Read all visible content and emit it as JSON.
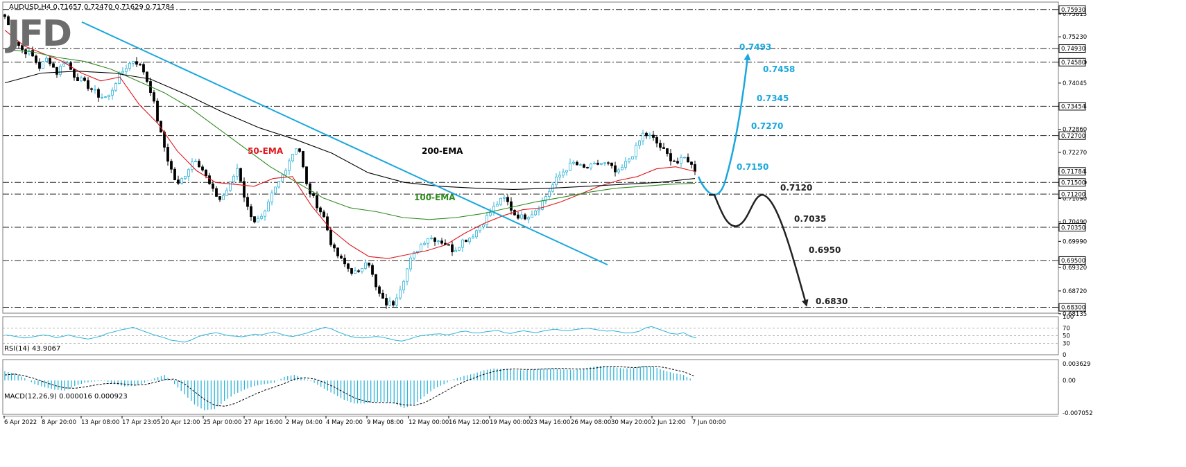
{
  "header": {
    "symbol_line": "AUDUSD,H4  0.71657 0.72470 0.71629 0.71784",
    "logo_text": "JFD"
  },
  "colors": {
    "bull": "#2bb3d9",
    "bear": "#000000",
    "ema50": "#e0161c",
    "ema100": "#2e8b1e",
    "ema200": "#000000",
    "trendline": "#1aa7dd",
    "scenario_up": "#1aa7dd",
    "scenario_down": "#222222",
    "grid": "#9a9a9a"
  },
  "chart_data": [
    {
      "type": "candlestick",
      "panel": "price",
      "ylim": [
        0.68135,
        0.7593
      ],
      "y_ticks": [
        "0.75815",
        "0.75230",
        "0.74580",
        "0.74045",
        "0.73454",
        "0.72860",
        "0.72270",
        "0.71784",
        "0.71500",
        "0.71090",
        "0.70490",
        "0.69990",
        "0.69320",
        "0.68720",
        "0.68135"
      ],
      "x_tick_labels": [
        "6 Apr 2022",
        "8 Apr 20:00",
        "13 Apr 08:00",
        "17 Apr 23:05",
        "20 Apr 12:00",
        "25 Apr 00:00",
        "27 Apr 16:00",
        "2 May 04:00",
        "4 May 20:00",
        "9 May 08:00",
        "12 May 00:00",
        "16 May 12:00",
        "19 May 00:00",
        "23 May 16:00",
        "26 May 08:00",
        "30 May 20:00",
        "2 Jun 12:00",
        "7 Jun 00:00"
      ],
      "key_levels": [
        {
          "value": 0.7593,
          "label": "0.75930"
        },
        {
          "value": 0.7493,
          "label": "0.74930"
        },
        {
          "value": 0.7458,
          "label": "0.74580"
        },
        {
          "value": 0.7345,
          "label": "0.73454"
        },
        {
          "value": 0.727,
          "label": "0.72700"
        },
        {
          "value": 0.715,
          "label": "0.71500"
        },
        {
          "value": 0.712,
          "label": "0.71200"
        },
        {
          "value": 0.7035,
          "label": "0.70350"
        },
        {
          "value": 0.695,
          "label": "0.69500"
        },
        {
          "value": 0.683,
          "label": "0.68300"
        }
      ],
      "current_price": {
        "value": 0.71784,
        "label": "0.71784"
      },
      "close_path": [
        0.7575,
        0.752,
        0.749,
        0.748,
        0.7445,
        0.747,
        0.743,
        0.7465,
        0.7425,
        0.7408,
        0.739,
        0.737,
        0.7368,
        0.7415,
        0.7445,
        0.7465,
        0.744,
        0.738,
        0.728,
        0.72,
        0.714,
        0.7175,
        0.7215,
        0.718,
        0.713,
        0.7105,
        0.714,
        0.719,
        0.709,
        0.705,
        0.706,
        0.712,
        0.716,
        0.721,
        0.725,
        0.714,
        0.71,
        0.706,
        0.698,
        0.695,
        0.6925,
        0.6915,
        0.696,
        0.688,
        0.684,
        0.684,
        0.689,
        0.695,
        0.6985,
        0.701,
        0.7005,
        0.6995,
        0.6975,
        0.7,
        0.701,
        0.7035,
        0.7065,
        0.7095,
        0.711,
        0.707,
        0.706,
        0.707,
        0.709,
        0.7125,
        0.716,
        0.7185,
        0.72,
        0.7185,
        0.719,
        0.72,
        0.7195,
        0.717,
        0.72,
        0.723,
        0.7275,
        0.7265,
        0.724,
        0.7215,
        0.72,
        0.7215,
        0.71784
      ],
      "series": [
        {
          "name": "50-EMA",
          "values": [
            0.754,
            0.75,
            0.748,
            0.746,
            0.743,
            0.741,
            0.742,
            0.735,
            0.73,
            0.723,
            0.718,
            0.715,
            0.7145,
            0.714,
            0.716,
            0.7165,
            0.709,
            0.703,
            0.699,
            0.696,
            0.6955,
            0.6965,
            0.6975,
            0.699,
            0.702,
            0.7045,
            0.7065,
            0.708,
            0.7085,
            0.71,
            0.712,
            0.714,
            0.7155,
            0.7165,
            0.7185,
            0.719,
            0.7178
          ]
        },
        {
          "name": "100-EMA",
          "values": [
            0.749,
            0.7485,
            0.747,
            0.746,
            0.744,
            0.741,
            0.738,
            0.734,
            0.729,
            0.724,
            0.719,
            0.715,
            0.711,
            0.7085,
            0.7075,
            0.706,
            0.7055,
            0.706,
            0.707,
            0.7085,
            0.71,
            0.7112,
            0.7125,
            0.7135,
            0.714,
            0.7145,
            0.7148
          ]
        },
        {
          "name": "200-EMA",
          "values": [
            0.7405,
            0.743,
            0.7435,
            0.743,
            0.7415,
            0.7375,
            0.733,
            0.729,
            0.726,
            0.7225,
            0.7175,
            0.715,
            0.714,
            0.7135,
            0.7132,
            0.7135,
            0.714,
            0.7145,
            0.715,
            0.716
          ]
        }
      ],
      "annotations": {
        "ema_labels": [
          "50-EMA",
          "100-EMA",
          "200-EMA"
        ],
        "scenario_levels_up": [
          "0.7493",
          "0.7458",
          "0.7345",
          "0.7270",
          "0.7150"
        ],
        "scenario_levels_down": [
          "0.7120",
          "0.7035",
          "0.6950",
          "0.6830"
        ]
      }
    },
    {
      "type": "line",
      "panel": "rsi",
      "title": "RSI(14) 43.9067",
      "ylim": [
        0,
        100
      ],
      "y_ticks": [
        "100",
        "70",
        "50",
        "30",
        "0"
      ],
      "levels": [
        70,
        50,
        30
      ],
      "values": [
        52,
        50,
        47,
        44,
        46,
        49,
        52,
        50,
        45,
        48,
        52,
        47,
        44,
        41,
        45,
        49,
        56,
        60,
        65,
        68,
        72,
        66,
        60,
        54,
        49,
        44,
        38,
        36,
        33,
        38,
        46,
        52,
        55,
        58,
        54,
        50,
        49,
        47,
        50,
        54,
        52,
        56,
        60,
        55,
        50,
        48,
        52,
        56,
        62,
        67,
        72,
        68,
        60,
        54,
        48,
        45,
        44,
        46,
        48,
        46,
        42,
        38,
        36,
        40,
        46,
        50,
        52,
        54,
        55,
        52,
        55,
        60,
        62,
        58,
        57,
        60,
        62,
        64,
        58,
        56,
        60,
        63,
        60,
        58,
        62,
        65,
        67,
        64,
        63,
        66,
        68,
        70,
        67,
        64,
        62,
        63,
        60,
        57,
        58,
        61,
        70,
        74,
        68,
        62,
        56,
        54,
        58,
        49,
        43.9
      ]
    },
    {
      "type": "bar+line",
      "panel": "macd",
      "title": "MACD(12,26,9) 0.000016 0.000923",
      "ylim": [
        -0.007052,
        0.003629
      ],
      "y_ticks": [
        "0.003629",
        "0.00",
        "-0.007052"
      ],
      "histogram": [
        0.002,
        0.0015,
        0.0005,
        -0.0008,
        -0.0015,
        -0.002,
        -0.0022,
        -0.0012,
        -0.0005,
        -0.0002,
        -0.0001,
        -0.0008,
        -0.0013,
        -0.0012,
        -0.0005,
        0.0005,
        0.0012,
        -0.0008,
        -0.003,
        -0.0052,
        -0.0065,
        -0.0062,
        -0.0045,
        -0.003,
        -0.002,
        -0.0012,
        -0.0008,
        -0.0005,
        0.0008,
        0.0012,
        0.0005,
        -0.0005,
        -0.0018,
        -0.003,
        -0.0042,
        -0.005,
        -0.005,
        -0.0047,
        -0.0046,
        -0.005,
        -0.006,
        -0.0052,
        -0.0035,
        -0.0018,
        -0.0008,
        0.0003,
        0.001,
        0.0015,
        0.0022,
        0.0026,
        0.0025,
        0.0023,
        0.0022,
        0.0024,
        0.0026,
        0.0026,
        0.0024,
        0.0023,
        0.0026,
        0.003,
        0.0032,
        0.0029,
        0.0026,
        0.0027,
        0.0032,
        0.003,
        0.0022,
        0.0016,
        0.0012,
        0.0
      ],
      "signal": [
        0.0012,
        0.0014,
        0.001,
        0.0004,
        -0.0004,
        -0.0011,
        -0.0016,
        -0.0017,
        -0.0014,
        -0.001,
        -0.0007,
        -0.0006,
        -0.0008,
        -0.001,
        -0.0009,
        -0.0004,
        0.0002,
        0.0003,
        -0.0008,
        -0.0025,
        -0.0042,
        -0.0054,
        -0.0056,
        -0.005,
        -0.004,
        -0.003,
        -0.0021,
        -0.0014,
        -0.0006,
        0.0003,
        0.0006,
        0.0003,
        -0.0005,
        -0.0015,
        -0.0027,
        -0.0038,
        -0.0045,
        -0.0048,
        -0.0048,
        -0.0049,
        -0.0053,
        -0.0054,
        -0.0048,
        -0.0036,
        -0.0024,
        -0.0012,
        -0.0002,
        0.0006,
        0.0014,
        0.002,
        0.0024,
        0.0025,
        0.0024,
        0.0024,
        0.0025,
        0.0026,
        0.0026,
        0.0025,
        0.0025,
        0.0027,
        0.003,
        0.0031,
        0.0029,
        0.0028,
        0.003,
        0.0031,
        0.0028,
        0.0023,
        0.0018,
        0.0009
      ]
    }
  ]
}
